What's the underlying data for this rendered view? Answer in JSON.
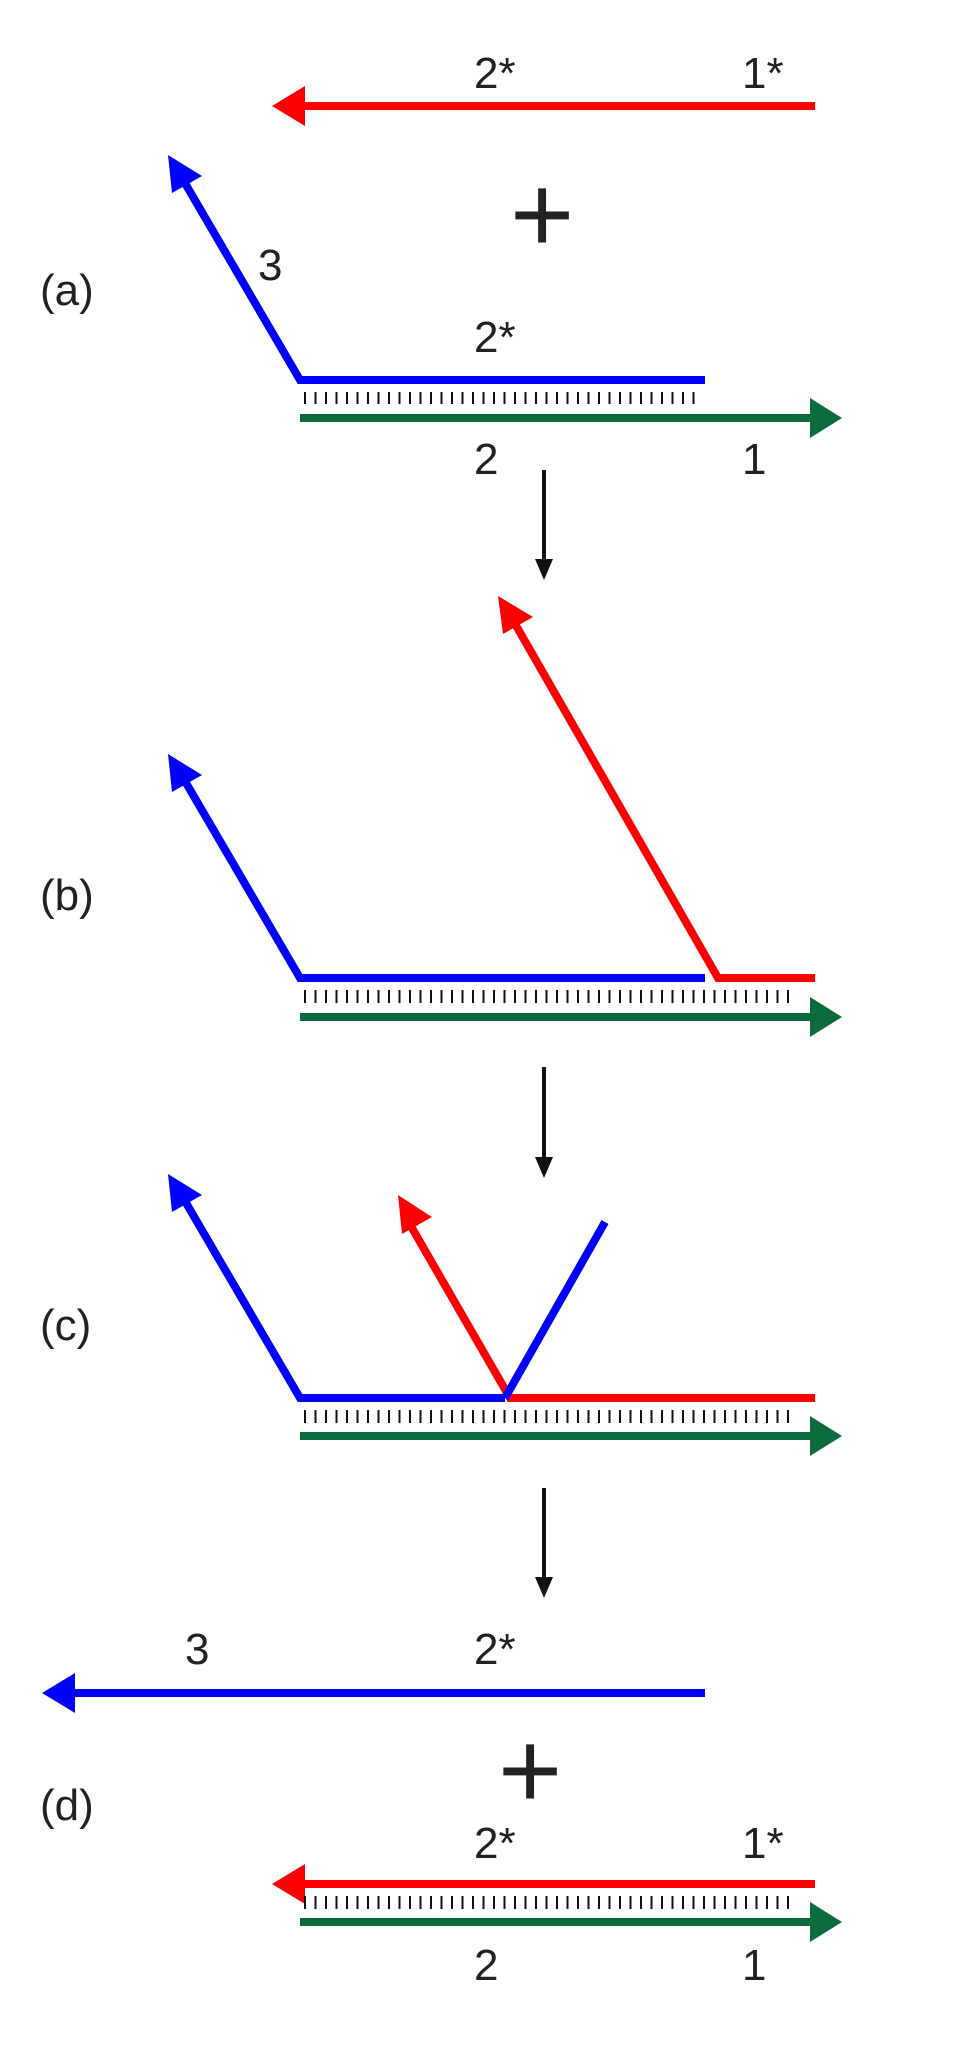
{
  "colors": {
    "red": "#ff0000",
    "blue": "#0000ff",
    "green": "#0b6b3a",
    "black": "#111111"
  },
  "panels": {
    "a": {
      "label": "(a)",
      "red_strand": {
        "left_label": "2*",
        "right_label": "1*"
      },
      "plus": "+",
      "blue_strand": {
        "arm_label": "3",
        "top_label": "2*"
      },
      "green_strand": {
        "left_label": "2",
        "right_label": "1"
      }
    },
    "b": {
      "label": "(b)"
    },
    "c": {
      "label": "(c)"
    },
    "d": {
      "label": "(d)",
      "blue_strand": {
        "left_label": "3",
        "right_label": "2*"
      },
      "plus": "+",
      "red_strand": {
        "left_label": "2*",
        "right_label": "1*"
      },
      "green_strand": {
        "left_label": "2",
        "right_label": "1"
      }
    }
  },
  "icons": [
    "arrow-down-icon",
    "arrowhead-icon"
  ]
}
